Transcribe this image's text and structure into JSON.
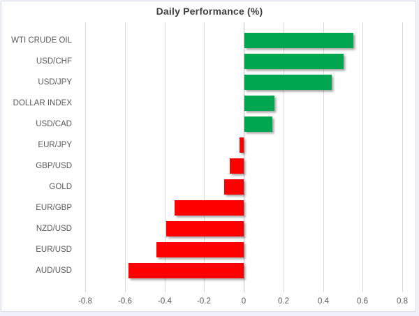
{
  "chart_data": {
    "type": "bar",
    "orientation": "horizontal",
    "title": "Daily Performance (%)",
    "categories": [
      "WTI CRUDE OIL",
      "USD/CHF",
      "USD/JPY",
      "DOLLAR INDEX",
      "USD/CAD",
      "EUR/JPY",
      "GBP/USD",
      "GOLD",
      "EUR/GBP",
      "NZD/USD",
      "EUR/USD",
      "AUD/USD"
    ],
    "values": [
      0.55,
      0.5,
      0.44,
      0.15,
      0.14,
      -0.02,
      -0.07,
      -0.1,
      -0.35,
      -0.39,
      -0.44,
      -0.58
    ],
    "xlim": [
      -0.8,
      0.8
    ],
    "xticks": [
      -0.8,
      -0.6,
      -0.4,
      -0.2,
      0,
      0.2,
      0.4,
      0.6,
      0.8
    ],
    "xtick_labels": [
      "-0.8",
      "-0.6",
      "-0.4",
      "-0.2",
      "0",
      "0.2",
      "0.4",
      "0.6",
      "0.8"
    ],
    "grid": true,
    "legend": false,
    "positive_color": "#00A650",
    "negative_color": "#FF0000",
    "gridline_color": "#D9D9D9",
    "text_color": "#595959",
    "title_color": "#3E3E3E",
    "background_color": "#FFFFFF"
  }
}
